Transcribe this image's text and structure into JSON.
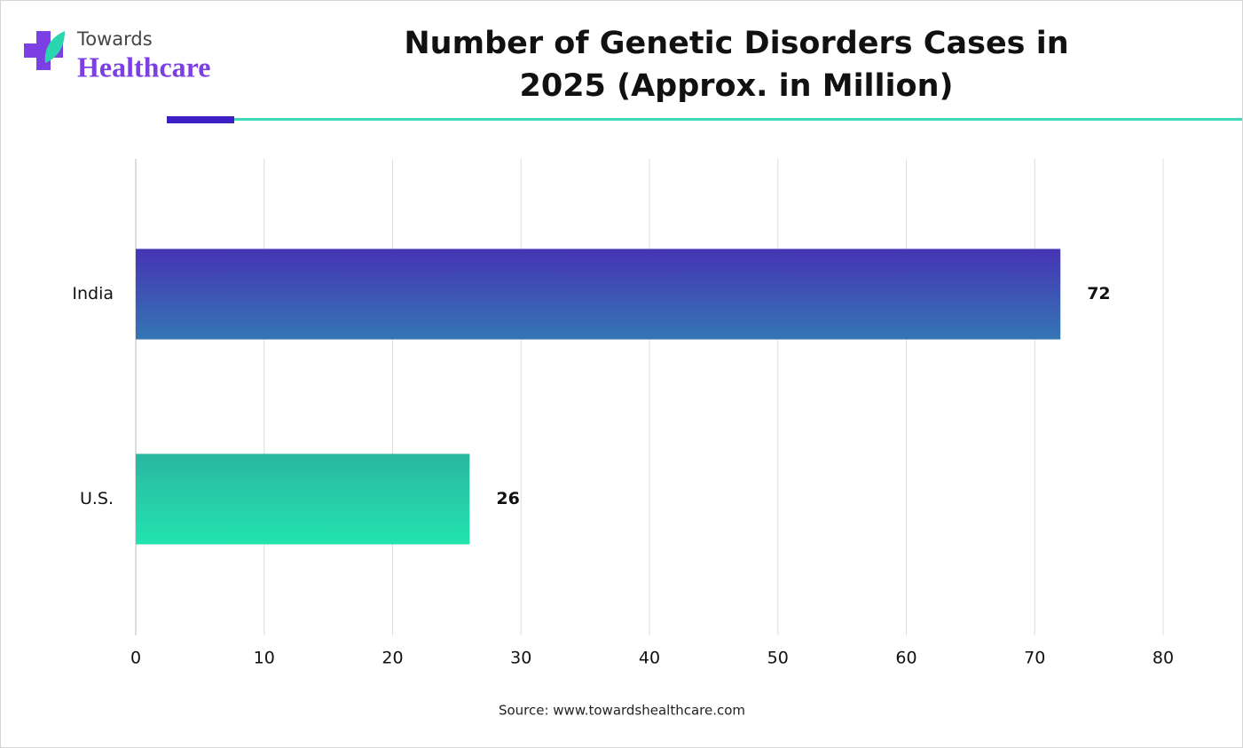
{
  "logo": {
    "line1": "Towards",
    "line2": "Healthcare"
  },
  "chart_data": {
    "type": "bar",
    "orientation": "horizontal",
    "title": "Number of Genetic Disorders Cases in 2025 (Approx. in Million)",
    "categories": [
      "India",
      "U.S."
    ],
    "values": [
      72,
      26
    ],
    "colors": [
      [
        "#4634b4",
        "#3476b4"
      ],
      [
        "#2ab7a2",
        "#22e3ae"
      ]
    ],
    "xlim": [
      0,
      80
    ],
    "xticks": [
      0,
      10,
      20,
      30,
      40,
      50,
      60,
      70,
      80
    ],
    "grid": true
  },
  "source": "Source: www.towardshealthcare.com"
}
